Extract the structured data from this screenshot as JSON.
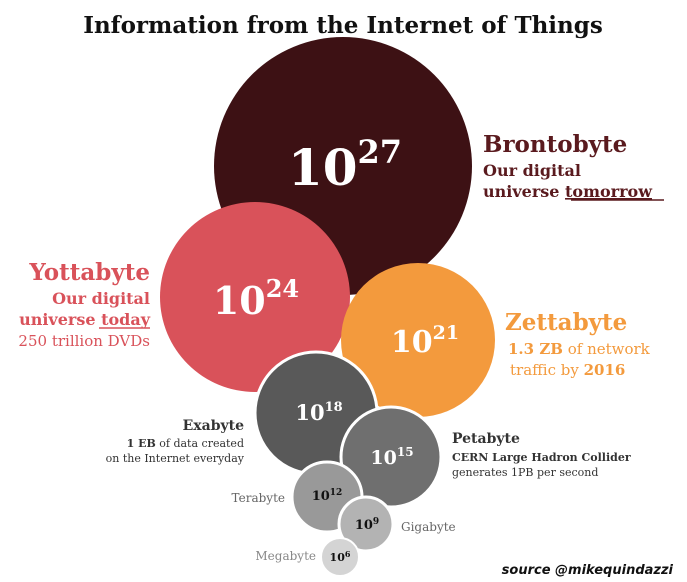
{
  "title": "Information from the Internet of Things",
  "source": "source @mikequindazzi",
  "colors": {
    "brontobyte": "#3d1114",
    "yottabyte": "#d9525a",
    "zettabyte": "#f39a3d",
    "exabyte": "#595959",
    "petabyte": "#6f6f6f",
    "terabyte": "#999999",
    "gigabyte": "#b3b3b3",
    "megabyte": "#cfcfcf",
    "brontobyte_text": "#5a1a1e",
    "yottabyte_text": "#d9525a",
    "zettabyte_text": "#f39a3d"
  },
  "units": [
    {
      "id": "brontobyte",
      "name": "Brontobyte",
      "base": "10",
      "exponent": "27",
      "desc1": "Our digital",
      "desc2_pre": "universe ",
      "desc2_u": "tomorrow"
    },
    {
      "id": "yottabyte",
      "name": "Yottabyte",
      "base": "10",
      "exponent": "24",
      "desc1": "Our digital",
      "desc2_pre": "universe ",
      "desc2_u": "today",
      "desc3": "250 trillion DVDs"
    },
    {
      "id": "zettabyte",
      "name": "Zettabyte",
      "base": "10",
      "exponent": "21",
      "desc1_bold": "1.3 ZB",
      "desc1_rest": " of network",
      "desc2_pre": "traffic by ",
      "desc2_bold": "2016"
    },
    {
      "id": "exabyte",
      "name": "Exabyte",
      "base": "10",
      "exponent": "18",
      "desc1_bold": "1 EB",
      "desc1_rest": " of data created",
      "desc2": "on the Internet everyday"
    },
    {
      "id": "petabyte",
      "name": "Petabyte",
      "base": "10",
      "exponent": "15",
      "desc1": "CERN Large Hadron Collider",
      "desc2": "generates 1PB per second"
    },
    {
      "id": "terabyte",
      "name": "Terabyte",
      "base": "10",
      "exponent": "12"
    },
    {
      "id": "gigabyte",
      "name": "Gigabyte",
      "base": "10",
      "exponent": "9"
    },
    {
      "id": "megabyte",
      "name": "Megabyte",
      "base": "10",
      "exponent": "6"
    }
  ]
}
